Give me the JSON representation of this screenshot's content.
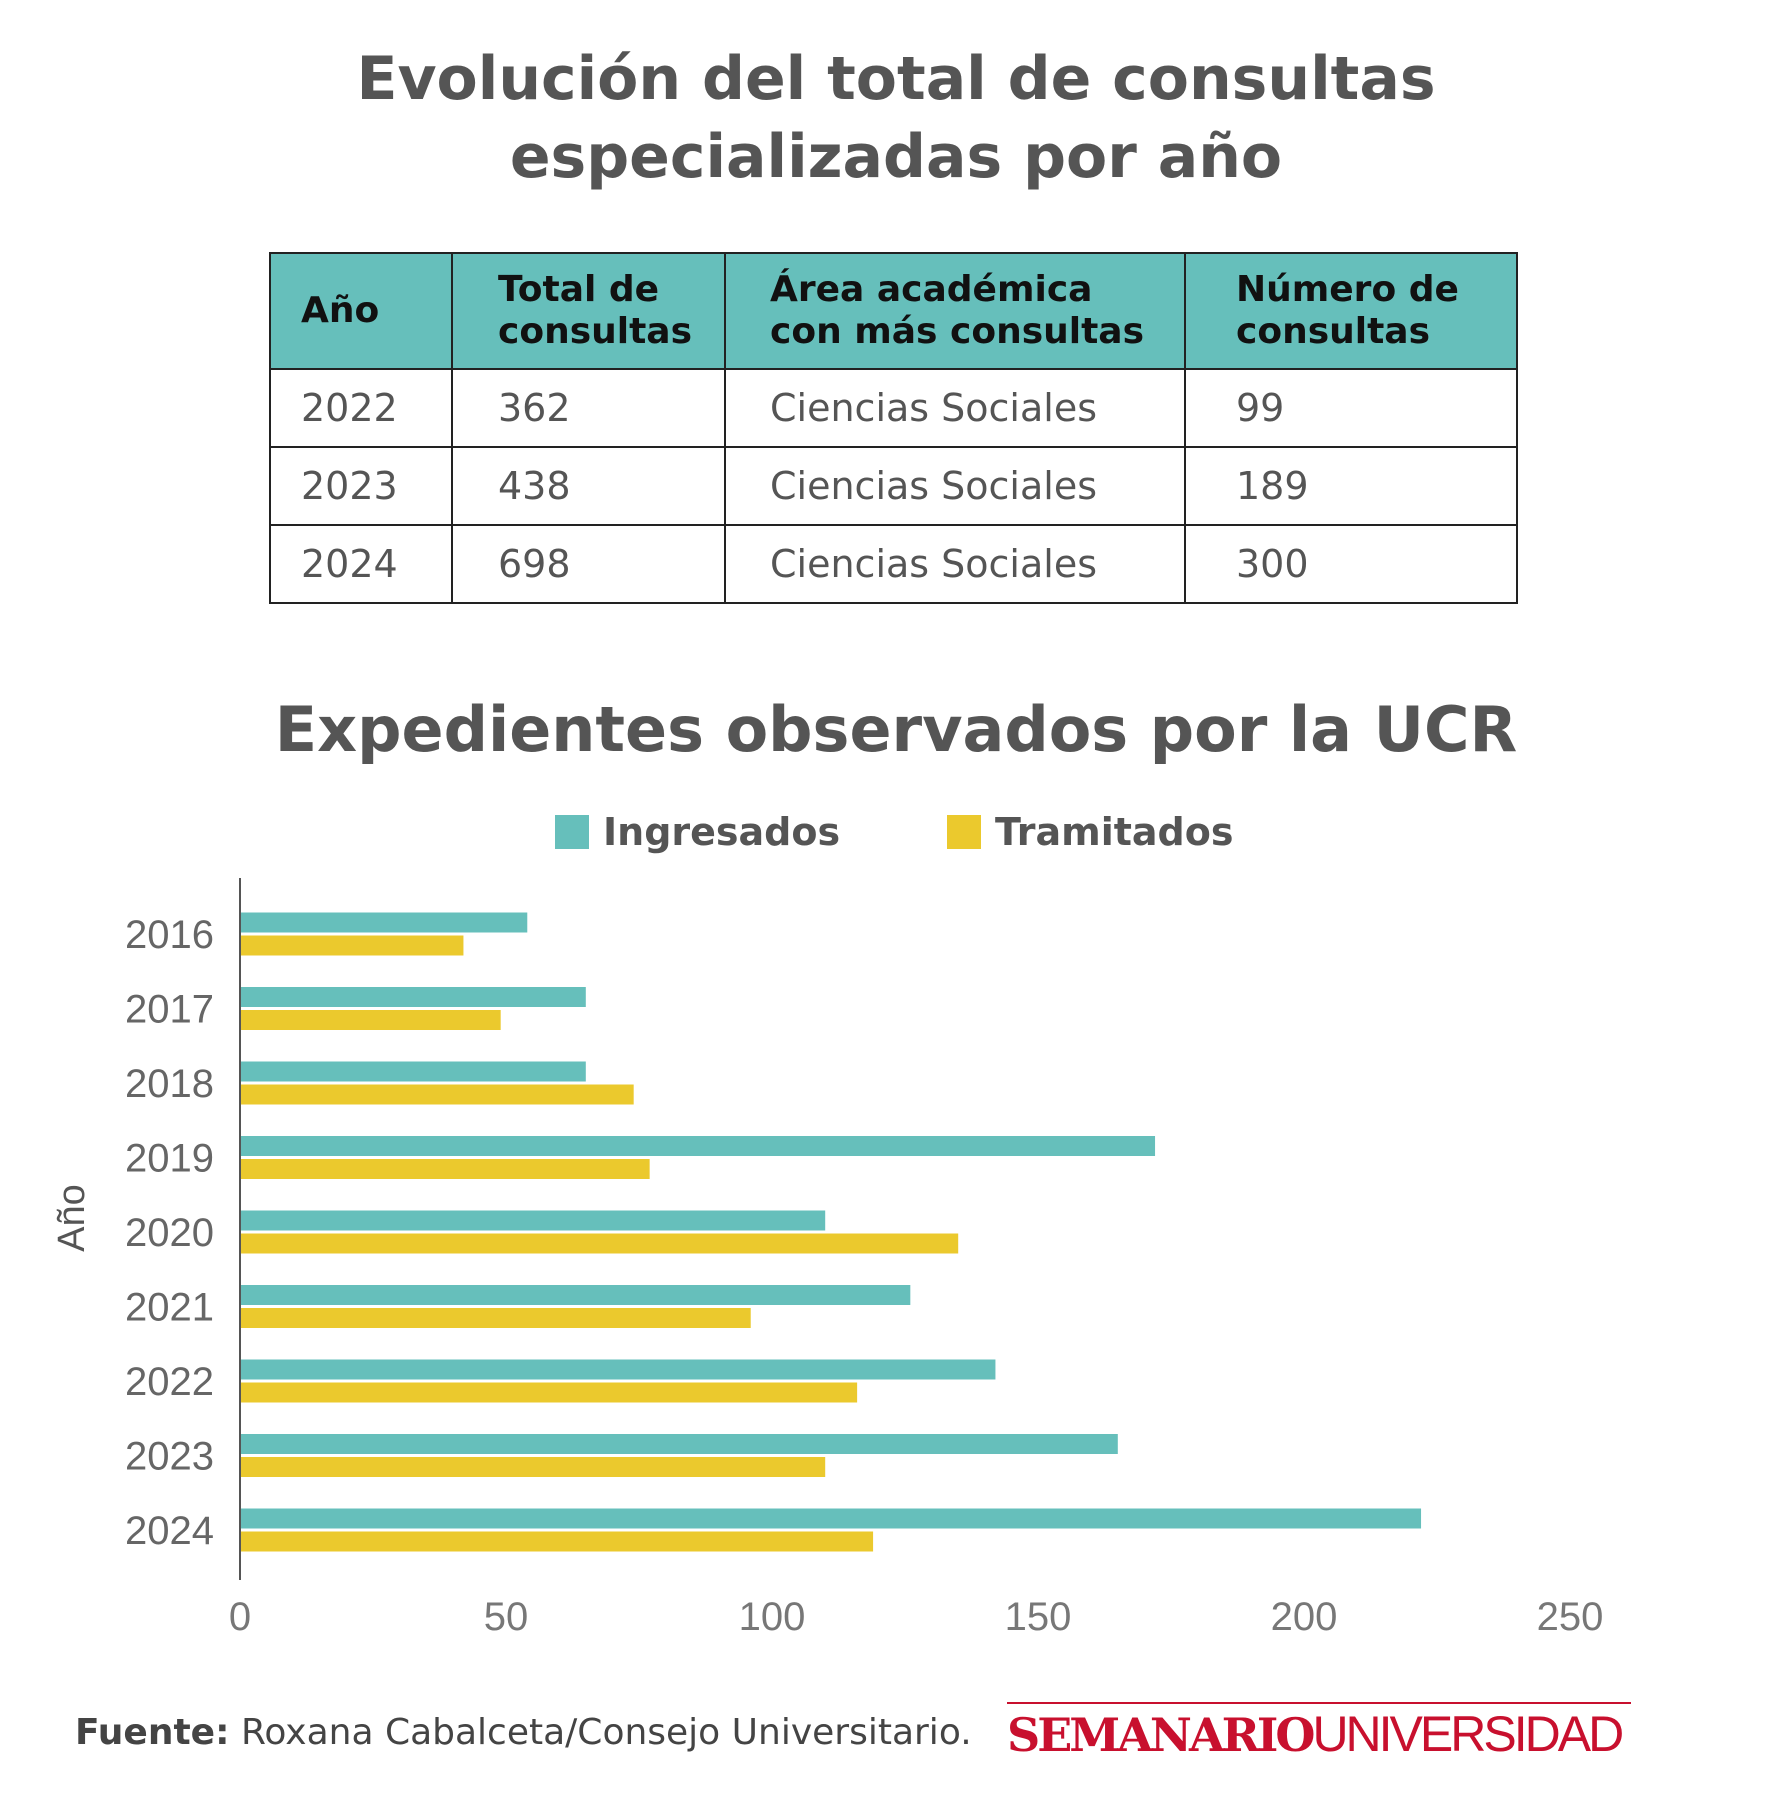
{
  "title_table": [
    "Evolución del total de consultas",
    "especializadas por año"
  ],
  "table": {
    "headers": [
      "Año",
      "Total de\nconsultas",
      "Área académica\ncon más consultas",
      "Número de\nconsultas"
    ],
    "rows": [
      [
        "2022",
        "362",
        "Ciencias Sociales",
        "99"
      ],
      [
        "2023",
        "438",
        "Ciencias Sociales",
        "189"
      ],
      [
        "2024",
        "698",
        "Ciencias Sociales",
        "300"
      ]
    ]
  },
  "colors": {
    "teal": "#66bfbb",
    "yellow": "#ebc92d",
    "text": "#555555",
    "brand": "#c8102e"
  },
  "chart_data": {
    "type": "bar",
    "orientation": "horizontal",
    "title": "Expedientes observados por la UCR",
    "ylabel": "Año",
    "xlabel": "",
    "categories": [
      "2016",
      "2017",
      "2018",
      "2019",
      "2020",
      "2021",
      "2022",
      "2023",
      "2024"
    ],
    "series": [
      {
        "name": "Ingresados",
        "color": "#66bfbb",
        "values": [
          54,
          65,
          65,
          172,
          110,
          126,
          142,
          165,
          222
        ]
      },
      {
        "name": "Tramitados",
        "color": "#ebc92d",
        "values": [
          42,
          49,
          74,
          77,
          135,
          96,
          116,
          110,
          119
        ]
      }
    ],
    "xlim": [
      0,
      250
    ],
    "xticks": [
      "0",
      "50",
      "100",
      "150",
      "200",
      "250"
    ],
    "grid": false,
    "legend": "top"
  },
  "source": {
    "label": "Fuente:",
    "text": " Roxana Cabalceta/Consejo Universitario."
  },
  "logo": {
    "part1": "SEMANARIO",
    "part2": "UNIVERSIDAD"
  }
}
